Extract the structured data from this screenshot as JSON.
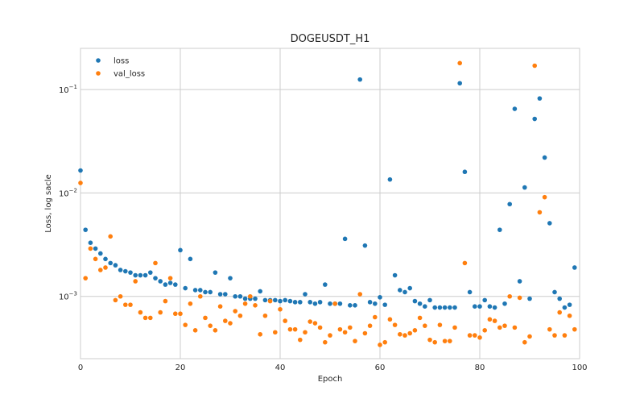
{
  "chart_data": {
    "type": "scatter",
    "title": "DOGEUSDT_H1",
    "xlabel": "Epoch",
    "ylabel": "Loss, log sacle",
    "xlim": [
      0,
      100
    ],
    "ylim": [
      0.00025,
      0.25
    ],
    "yscale": "log",
    "grid": true,
    "legend_position": "top-left",
    "x_ticks": [
      0,
      20,
      40,
      60,
      80,
      100
    ],
    "x_tick_labels": [
      "0",
      "20",
      "40",
      "60",
      "80",
      "100"
    ],
    "y_ticks": [
      0.001,
      0.01,
      0.1
    ],
    "y_tick_labels": [
      {
        "base": "10",
        "exp": "−3"
      },
      {
        "base": "10",
        "exp": "−2"
      },
      {
        "base": "10",
        "exp": "−1"
      }
    ],
    "series": [
      {
        "name": "loss",
        "color": "#1f77b4",
        "x": [
          0,
          1,
          2,
          3,
          4,
          5,
          6,
          7,
          8,
          9,
          10,
          11,
          12,
          13,
          14,
          15,
          16,
          17,
          18,
          19,
          20,
          21,
          22,
          23,
          24,
          25,
          26,
          27,
          28,
          29,
          30,
          31,
          32,
          33,
          34,
          35,
          36,
          37,
          38,
          39,
          40,
          41,
          42,
          43,
          44,
          45,
          46,
          47,
          48,
          49,
          50,
          51,
          52,
          53,
          54,
          55,
          56,
          57,
          58,
          59,
          60,
          61,
          62,
          63,
          64,
          65,
          66,
          67,
          68,
          69,
          70,
          71,
          72,
          73,
          74,
          75,
          76,
          77,
          78,
          79,
          80,
          81,
          82,
          83,
          84,
          85,
          86,
          87,
          88,
          89,
          90,
          91,
          92,
          93,
          94,
          95,
          96,
          97,
          98,
          99
        ],
        "y": [
          0.0165,
          0.0044,
          0.0033,
          0.0029,
          0.0026,
          0.0023,
          0.0021,
          0.002,
          0.0018,
          0.00175,
          0.0017,
          0.0016,
          0.0016,
          0.0016,
          0.0017,
          0.0015,
          0.0014,
          0.0013,
          0.00135,
          0.0013,
          0.0028,
          0.0012,
          0.0023,
          0.00115,
          0.00115,
          0.0011,
          0.0011,
          0.0017,
          0.00105,
          0.00105,
          0.0015,
          0.001,
          0.001,
          0.00095,
          0.00095,
          0.00095,
          0.00112,
          0.00092,
          0.00092,
          0.00092,
          0.0009,
          0.00092,
          0.0009,
          0.00088,
          0.00088,
          0.00105,
          0.00088,
          0.00085,
          0.00088,
          0.0013,
          0.00085,
          0.00085,
          0.00085,
          0.0036,
          0.00082,
          0.00082,
          0.125,
          0.0031,
          0.00088,
          0.00085,
          0.00098,
          0.00083,
          0.0135,
          0.0016,
          0.00115,
          0.0011,
          0.0012,
          0.0009,
          0.00085,
          0.0008,
          0.00092,
          0.00078,
          0.00078,
          0.00078,
          0.00078,
          0.00078,
          0.115,
          0.016,
          0.0011,
          0.0008,
          0.0008,
          0.00092,
          0.0008,
          0.00078,
          0.0044,
          0.00085,
          0.0078,
          0.065,
          0.0014,
          0.0113,
          0.00095,
          0.052,
          0.082,
          0.022,
          0.0051,
          0.0011,
          0.00095,
          0.00078,
          0.00083,
          0.0019
        ]
      },
      {
        "name": "val_loss",
        "color": "#ff7f0e",
        "x": [
          0,
          1,
          2,
          3,
          4,
          5,
          6,
          7,
          8,
          9,
          10,
          11,
          12,
          13,
          14,
          15,
          16,
          17,
          18,
          19,
          20,
          21,
          22,
          23,
          24,
          25,
          26,
          27,
          28,
          29,
          30,
          31,
          32,
          33,
          34,
          35,
          36,
          37,
          38,
          39,
          40,
          41,
          42,
          43,
          44,
          45,
          46,
          47,
          48,
          49,
          50,
          51,
          52,
          53,
          54,
          55,
          56,
          57,
          58,
          59,
          60,
          61,
          62,
          63,
          64,
          65,
          66,
          67,
          68,
          69,
          70,
          71,
          72,
          73,
          74,
          75,
          76,
          77,
          78,
          79,
          80,
          81,
          82,
          83,
          84,
          85,
          86,
          87,
          88,
          89,
          90,
          91,
          92,
          93,
          94,
          95,
          96,
          97,
          98,
          99
        ],
        "y": [
          0.0125,
          0.0015,
          0.0029,
          0.0023,
          0.0018,
          0.0019,
          0.0038,
          0.00092,
          0.001,
          0.00083,
          0.00083,
          0.0014,
          0.0007,
          0.00062,
          0.00062,
          0.0021,
          0.0007,
          0.0009,
          0.0015,
          0.00068,
          0.00068,
          0.00053,
          0.00085,
          0.00047,
          0.001,
          0.00062,
          0.00052,
          0.00047,
          0.0008,
          0.00058,
          0.00055,
          0.00072,
          0.00065,
          0.00085,
          0.001,
          0.00082,
          0.00043,
          0.00065,
          0.0009,
          0.00045,
          0.00075,
          0.00058,
          0.00048,
          0.00048,
          0.00038,
          0.00045,
          0.00057,
          0.00055,
          0.0005,
          0.00036,
          0.00042,
          0.00085,
          0.00048,
          0.00045,
          0.0005,
          0.00037,
          0.00105,
          0.00044,
          0.00052,
          0.00063,
          0.00034,
          0.00036,
          0.0006,
          0.00053,
          0.00043,
          0.00042,
          0.00044,
          0.00047,
          0.00062,
          0.00052,
          0.00038,
          0.00036,
          0.00053,
          0.00037,
          0.00037,
          0.0005,
          0.18,
          0.0021,
          0.00042,
          0.00042,
          0.0004,
          0.00047,
          0.0006,
          0.00058,
          0.0005,
          0.00052,
          0.001,
          0.0005,
          0.00097,
          0.00036,
          0.00041,
          0.17,
          0.0065,
          0.0091,
          0.00048,
          0.00042,
          0.0007,
          0.00042,
          0.00065,
          0.00048
        ]
      }
    ]
  }
}
